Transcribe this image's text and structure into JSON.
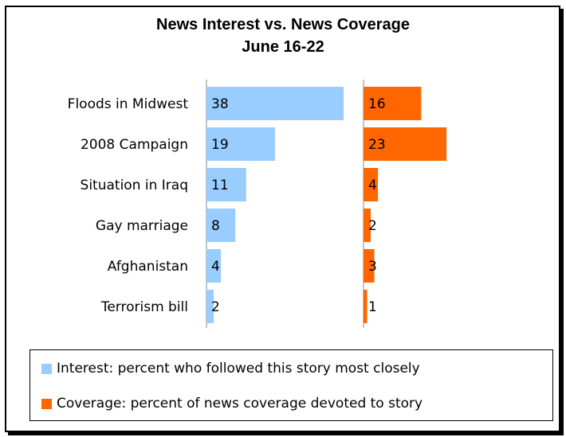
{
  "chart_data": {
    "type": "bar",
    "title": "News Interest vs. News Coverage",
    "subtitle": "June 16-22",
    "categories": [
      "Floods in Midwest",
      "2008 Campaign",
      "Situation in Iraq",
      "Gay marriage",
      "Afghanistan",
      "Terrorism bill"
    ],
    "series": [
      {
        "name": "Interest: percent who followed this story most closely",
        "values": [
          38,
          19,
          11,
          8,
          4,
          2
        ],
        "color": "#99ccff"
      },
      {
        "name": "Coverage: percent of news coverage devoted to story",
        "values": [
          16,
          23,
          4,
          2,
          3,
          1
        ],
        "color": "#ff6600"
      }
    ],
    "orientation": "horizontal",
    "layout": "side-by-side panels",
    "legend_position": "bottom",
    "grid": false
  }
}
